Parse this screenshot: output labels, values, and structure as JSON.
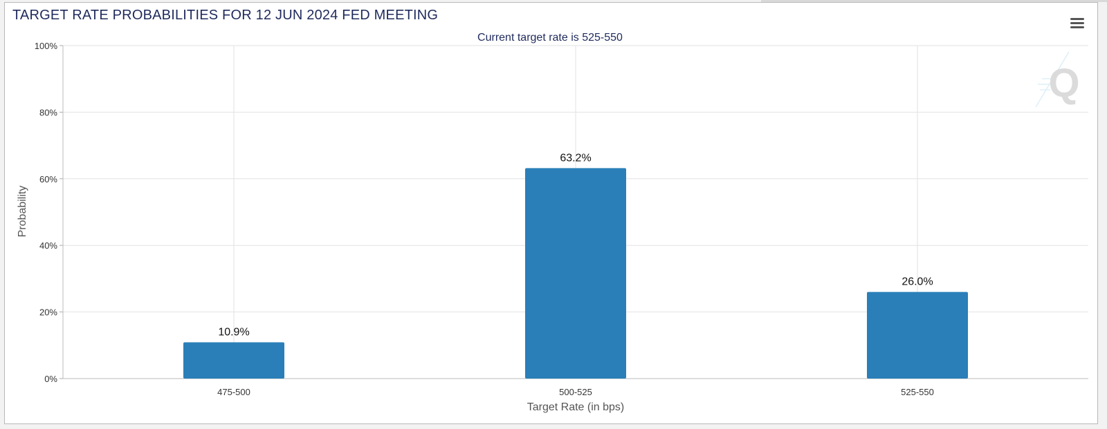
{
  "header": {
    "title": "TARGET RATE PROBABILITIES FOR 12 JUN 2024 FED MEETING",
    "menu_icon": "hamburger-menu-icon",
    "watermark_icon": "q-watermark-icon"
  },
  "chart_data": {
    "type": "bar",
    "subtitle": "Current target rate is 525-550",
    "xlabel": "Target Rate (in bps)",
    "ylabel": "Probability",
    "categories": [
      "475-500",
      "500-525",
      "525-550"
    ],
    "values": [
      10.9,
      63.2,
      26.0
    ],
    "data_labels": [
      "10.9%",
      "63.2%",
      "26.0%"
    ],
    "ylim": [
      0,
      100
    ],
    "yticks": [
      0,
      20,
      40,
      60,
      80,
      100
    ],
    "ytick_labels": [
      "0%",
      "20%",
      "40%",
      "60%",
      "80%",
      "100%"
    ],
    "grid": true,
    "bar_color": "#2a7fb8"
  }
}
